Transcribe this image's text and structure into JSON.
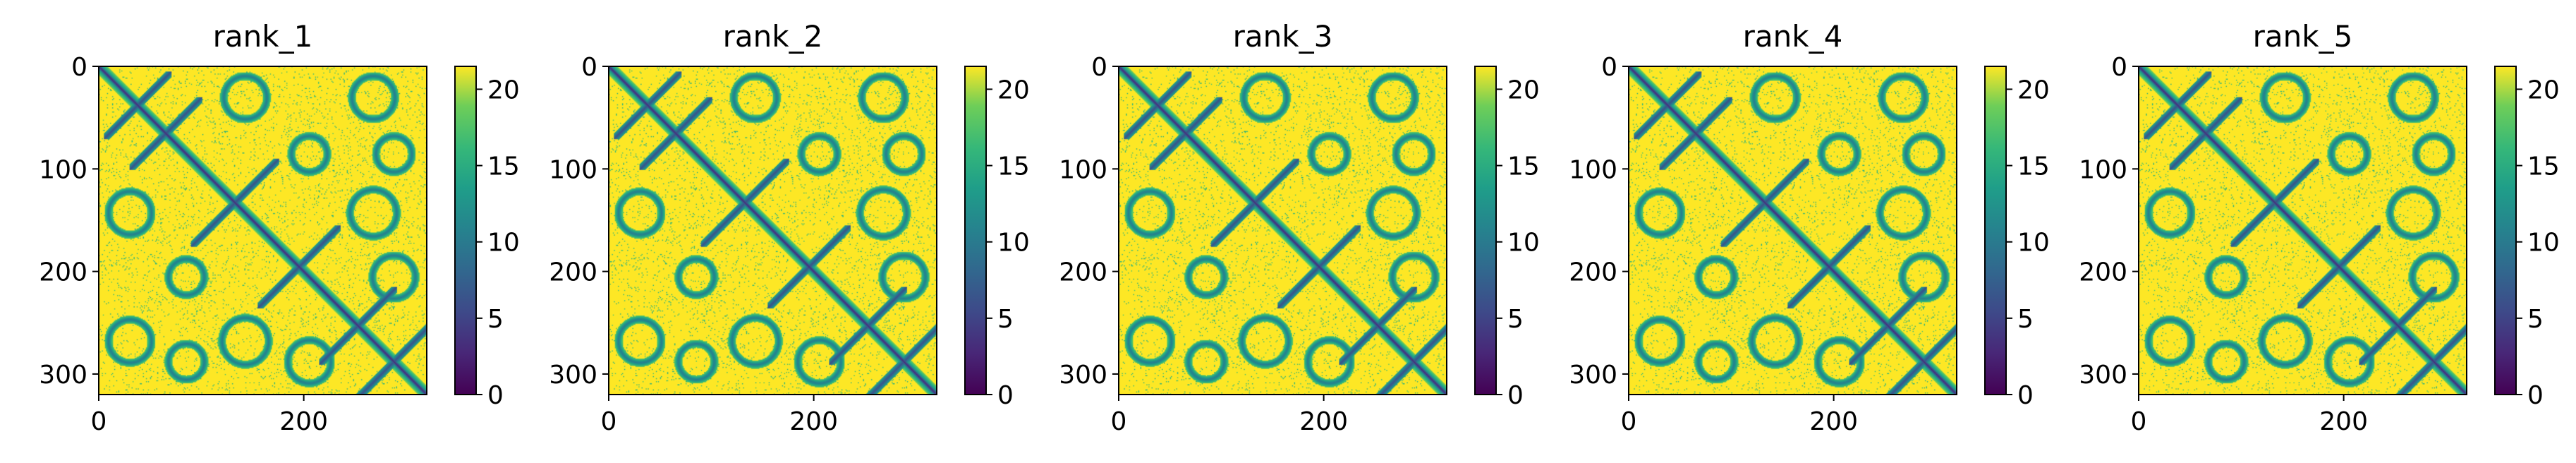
{
  "chart_data": [
    {
      "type": "heatmap",
      "title": "rank_1",
      "xlim": [
        0,
        320
      ],
      "ylim": [
        320,
        0
      ],
      "xticks": [
        0,
        200
      ],
      "yticks": [
        0,
        100,
        200,
        300
      ],
      "colorbar": {
        "range": [
          0,
          21.5
        ],
        "ticks": [
          0,
          5,
          10,
          15,
          20
        ],
        "colormap": "viridis"
      },
      "structure": {
        "length": 320,
        "diagonal_value": 3,
        "background_value": 21.5,
        "helix_hairpin_contacts": [
          [
            30,
            45
          ],
          [
            55,
            75
          ],
          [
            115,
            150
          ],
          [
            180,
            210
          ],
          [
            240,
            265
          ],
          [
            275,
            300
          ]
        ],
        "long_range_contact_blocks": [
          [
            0,
            60
          ],
          [
            60,
            110
          ],
          [
            110,
            175
          ],
          [
            175,
            235
          ],
          [
            235,
            300
          ],
          [
            255,
            320
          ]
        ]
      }
    },
    {
      "type": "heatmap",
      "title": "rank_2",
      "xlim": [
        0,
        320
      ],
      "ylim": [
        320,
        0
      ],
      "xticks": [
        0,
        200
      ],
      "yticks": [
        0,
        100,
        200,
        300
      ],
      "colorbar": {
        "range": [
          0,
          21.5
        ],
        "ticks": [
          0,
          5,
          10,
          15,
          20
        ],
        "colormap": "viridis"
      },
      "structure": {
        "length": 320,
        "diagonal_value": 3,
        "background_value": 21.5,
        "helix_hairpin_contacts": [
          [
            30,
            45
          ],
          [
            55,
            75
          ],
          [
            115,
            150
          ],
          [
            180,
            210
          ],
          [
            240,
            265
          ],
          [
            275,
            300
          ]
        ],
        "long_range_contact_blocks": [
          [
            0,
            60
          ],
          [
            60,
            110
          ],
          [
            110,
            175
          ],
          [
            175,
            235
          ],
          [
            235,
            300
          ],
          [
            255,
            320
          ]
        ]
      }
    },
    {
      "type": "heatmap",
      "title": "rank_3",
      "xlim": [
        0,
        320
      ],
      "ylim": [
        320,
        0
      ],
      "xticks": [
        0,
        200
      ],
      "yticks": [
        0,
        100,
        200,
        300
      ],
      "colorbar": {
        "range": [
          0,
          21.5
        ],
        "ticks": [
          0,
          5,
          10,
          15,
          20
        ],
        "colormap": "viridis"
      },
      "structure": {
        "length": 320,
        "diagonal_value": 3,
        "background_value": 21.5,
        "helix_hairpin_contacts": [
          [
            30,
            45
          ],
          [
            55,
            75
          ],
          [
            115,
            150
          ],
          [
            180,
            210
          ],
          [
            240,
            265
          ],
          [
            275,
            300
          ]
        ],
        "long_range_contact_blocks": [
          [
            0,
            60
          ],
          [
            60,
            110
          ],
          [
            110,
            175
          ],
          [
            175,
            235
          ],
          [
            235,
            300
          ],
          [
            255,
            320
          ]
        ]
      }
    },
    {
      "type": "heatmap",
      "title": "rank_4",
      "xlim": [
        0,
        320
      ],
      "ylim": [
        320,
        0
      ],
      "xticks": [
        0,
        200
      ],
      "yticks": [
        0,
        100,
        200,
        300
      ],
      "colorbar": {
        "range": [
          0,
          21.5
        ],
        "ticks": [
          0,
          5,
          10,
          15,
          20
        ],
        "colormap": "viridis"
      },
      "structure": {
        "length": 320,
        "diagonal_value": 3,
        "background_value": 21.5,
        "helix_hairpin_contacts": [
          [
            30,
            45
          ],
          [
            55,
            75
          ],
          [
            115,
            150
          ],
          [
            180,
            210
          ],
          [
            240,
            265
          ],
          [
            275,
            300
          ]
        ],
        "long_range_contact_blocks": [
          [
            0,
            60
          ],
          [
            60,
            110
          ],
          [
            110,
            175
          ],
          [
            175,
            235
          ],
          [
            235,
            300
          ],
          [
            255,
            320
          ]
        ]
      }
    },
    {
      "type": "heatmap",
      "title": "rank_5",
      "xlim": [
        0,
        320
      ],
      "ylim": [
        320,
        0
      ],
      "xticks": [
        0,
        200
      ],
      "yticks": [
        0,
        100,
        200,
        300
      ],
      "colorbar": {
        "range": [
          0,
          21.5
        ],
        "ticks": [
          0,
          5,
          10,
          15,
          20
        ],
        "colormap": "viridis"
      },
      "structure": {
        "length": 320,
        "diagonal_value": 3,
        "background_value": 21.5,
        "helix_hairpin_contacts": [
          [
            30,
            45
          ],
          [
            55,
            75
          ],
          [
            115,
            150
          ],
          [
            180,
            210
          ],
          [
            240,
            265
          ],
          [
            275,
            300
          ]
        ],
        "long_range_contact_blocks": [
          [
            0,
            60
          ],
          [
            60,
            110
          ],
          [
            110,
            175
          ],
          [
            175,
            235
          ],
          [
            235,
            300
          ],
          [
            255,
            320
          ]
        ]
      }
    }
  ],
  "colors": {
    "axis": "#000000",
    "background": "#ffffff"
  }
}
